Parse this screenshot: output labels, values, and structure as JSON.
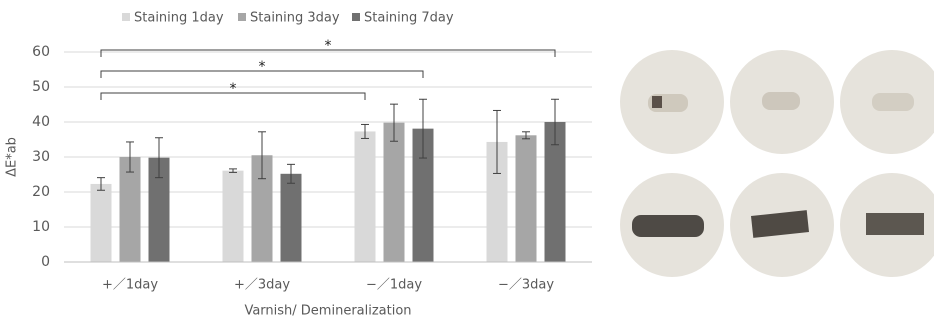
{
  "chart_data": {
    "type": "bar",
    "y_label": "ΔE*ab",
    "x_label": "Varnish/ Demineralization",
    "categories": [
      "+／1day",
      "+／3day",
      "−／1day",
      "−／3day"
    ],
    "series": [
      {
        "name": "Staining 1day",
        "color": "#d9d9d9",
        "values": [
          22.3,
          26.1,
          37.3,
          34.3
        ],
        "errors": [
          1.8,
          0.5,
          2,
          9
        ]
      },
      {
        "name": "Staining 3day",
        "color": "#a6a6a6",
        "values": [
          30,
          30.5,
          39.8,
          36.2
        ],
        "errors": [
          4.3,
          6.7,
          5.3,
          1
        ]
      },
      {
        "name": "Staining 7day",
        "color": "#707070",
        "values": [
          29.8,
          25.2,
          38.1,
          40
        ],
        "errors": [
          5.7,
          2.7,
          8.4,
          6.5
        ]
      }
    ],
    "ylim": [
      0,
      60
    ],
    "yticks": [
      0,
      10,
      20,
      30,
      40,
      50,
      60
    ],
    "grid": true,
    "legend": "top",
    "annotations": [
      {
        "text": "*"
      },
      {
        "text": "*"
      },
      {
        "text": "*"
      }
    ]
  }
}
